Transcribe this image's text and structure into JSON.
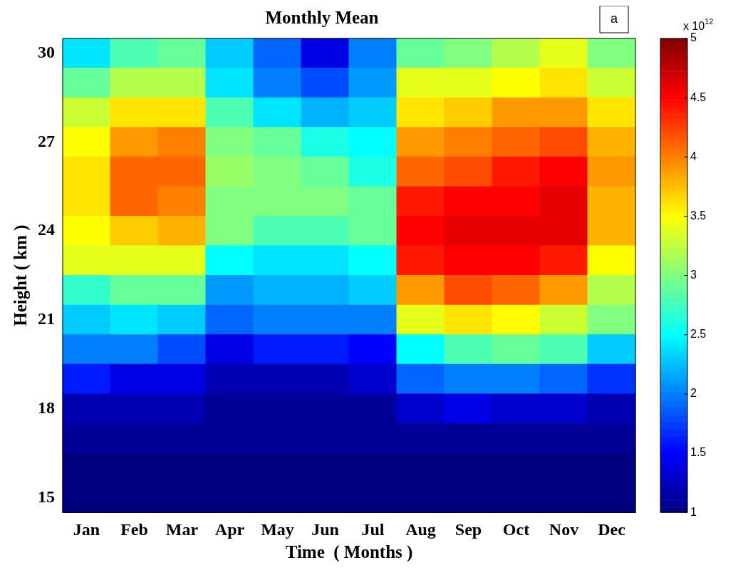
{
  "chart_data": {
    "type": "heatmap",
    "title": "Monthly Mean",
    "xlabel": "Time  ( Months )",
    "ylabel": "Height ( km )",
    "clabel": "x 10$^{12}$",
    "annotations": [
      "a"
    ],
    "categories": [
      "Jan",
      "Feb",
      "Mar",
      "Apr",
      "May",
      "Jun",
      "Jul",
      "Aug",
      "Sep",
      "Oct",
      "Nov",
      "Dec"
    ],
    "y_categories": [
      "30",
      null,
      null,
      "27",
      null,
      null,
      "24",
      null,
      null,
      "21",
      null,
      null,
      "18",
      null,
      null,
      "15"
    ],
    "cells": [
      [
        2.4,
        2.8,
        2.9,
        2.3,
        1.9,
        1.4,
        2.0,
        2.9,
        3.0,
        3.2,
        3.4,
        3.0
      ],
      [
        2.9,
        3.2,
        3.2,
        2.4,
        2.0,
        1.8,
        2.1,
        3.4,
        3.4,
        3.5,
        3.6,
        3.3
      ],
      [
        3.3,
        3.6,
        3.6,
        2.8,
        2.4,
        2.2,
        2.3,
        3.6,
        3.7,
        3.9,
        3.9,
        3.6
      ],
      [
        3.5,
        3.9,
        4.0,
        3.0,
        2.9,
        2.6,
        2.5,
        3.9,
        4.0,
        4.1,
        4.2,
        3.8
      ],
      [
        3.6,
        4.1,
        4.1,
        3.1,
        3.0,
        2.9,
        2.6,
        4.1,
        4.2,
        4.4,
        4.5,
        3.9
      ],
      [
        3.6,
        4.1,
        4.0,
        3.0,
        3.0,
        3.0,
        2.9,
        4.4,
        4.5,
        4.5,
        4.6,
        3.8
      ],
      [
        3.5,
        3.7,
        3.8,
        3.0,
        2.8,
        2.8,
        2.9,
        4.5,
        4.6,
        4.6,
        4.6,
        3.8
      ],
      [
        3.4,
        3.4,
        3.4,
        2.5,
        2.4,
        2.4,
        2.5,
        4.4,
        4.5,
        4.5,
        4.4,
        3.5
      ],
      [
        2.7,
        2.9,
        2.9,
        2.1,
        2.2,
        2.2,
        2.3,
        3.9,
        4.2,
        4.1,
        3.9,
        3.2
      ],
      [
        2.3,
        2.4,
        2.3,
        1.9,
        2.0,
        2.0,
        2.0,
        3.4,
        3.6,
        3.5,
        3.3,
        3.0
      ],
      [
        2.0,
        2.0,
        1.8,
        1.4,
        1.6,
        1.6,
        1.5,
        2.5,
        2.8,
        2.9,
        2.8,
        2.3
      ],
      [
        1.6,
        1.4,
        1.4,
        1.2,
        1.2,
        1.2,
        1.3,
        1.9,
        2.0,
        2.0,
        1.9,
        1.7
      ],
      [
        1.2,
        1.2,
        1.2,
        1.1,
        1.1,
        1.1,
        1.1,
        1.3,
        1.4,
        1.3,
        1.3,
        1.2
      ],
      [
        1.1,
        1.1,
        1.1,
        1.1,
        1.1,
        1.1,
        1.1,
        1.1,
        1.1,
        1.1,
        1.1,
        1.1
      ],
      [
        1.0,
        1.0,
        1.0,
        1.0,
        1.0,
        1.0,
        1.0,
        1.0,
        1.0,
        1.0,
        1.0,
        1.0
      ],
      [
        1.0,
        1.0,
        1.0,
        1.0,
        1.0,
        1.0,
        1.0,
        1.0,
        1.0,
        1.0,
        1.0,
        1.0
      ]
    ],
    "clim": [
      1,
      5
    ],
    "cticks": [
      1,
      1.5,
      2,
      2.5,
      3,
      3.5,
      4,
      4.5,
      5
    ]
  }
}
